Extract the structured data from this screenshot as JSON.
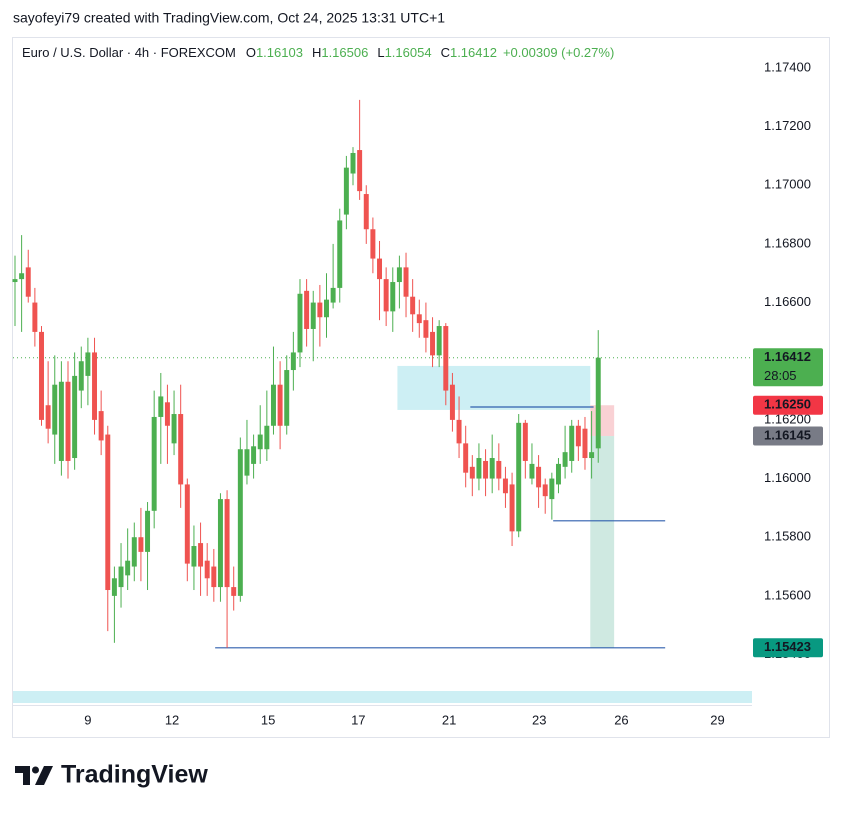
{
  "attribution": "sayofeyi79 created with TradingView.com, Oct 24, 2025 13:31 UTC+1",
  "brand": "TradingView",
  "chart_data": {
    "type": "candlestick",
    "header": {
      "symbol": "Euro / U.S. Dollar · 4h · FOREXCOM",
      "ohlc": [
        {
          "key": "O",
          "value": 1.16103
        },
        {
          "key": "H",
          "value": 1.16506
        },
        {
          "key": "L",
          "value": 1.16054
        },
        {
          "key": "C",
          "value": 1.16412
        }
      ],
      "change": "+0.00309 (+0.27%)"
    },
    "up_color": "#4caf50",
    "down_color": "#ef5350",
    "x": [
      0,
      1,
      2,
      3,
      4,
      5,
      6,
      7,
      8,
      9,
      10,
      11,
      12,
      13,
      14,
      15,
      16,
      17,
      18,
      19,
      20,
      21,
      22,
      23,
      24,
      25,
      26,
      27,
      28,
      29,
      30,
      31,
      32,
      33,
      34,
      35,
      36,
      37,
      38,
      39,
      40,
      41,
      42,
      43,
      44,
      45,
      46,
      47,
      48,
      49,
      50,
      51,
      52,
      53,
      54,
      55,
      56,
      57,
      58,
      59,
      60,
      61,
      62,
      63,
      64,
      65,
      66,
      67,
      68,
      69,
      70,
      71,
      72,
      73,
      74,
      75,
      76,
      77,
      78,
      79,
      80,
      81,
      82,
      83,
      84,
      85,
      86,
      87,
      88
    ],
    "open": [
      1.1667,
      1.1668,
      1.1672,
      1.166,
      1.165,
      1.1625,
      1.1615,
      1.1606,
      1.1633,
      1.1607,
      1.163,
      1.1635,
      1.1643,
      1.1623,
      1.1615,
      1.156,
      1.1563,
      1.1567,
      1.157,
      1.158,
      1.1575,
      1.1589,
      1.1621,
      1.1626,
      1.1612,
      1.1622,
      1.1598,
      1.157,
      1.1578,
      1.1572,
      1.157,
      1.1563,
      1.1593,
      1.1563,
      1.156,
      1.1601,
      1.1605,
      1.161,
      1.161,
      1.1618,
      1.1632,
      1.1618,
      1.1637,
      1.1643,
      1.1664,
      1.1651,
      1.166,
      1.1655,
      1.166,
      1.1665,
      1.169,
      1.1704,
      1.1712,
      1.1697,
      1.1685,
      1.1675,
      1.1668,
      1.1657,
      1.1667,
      1.1672,
      1.1662,
      1.1656,
      1.1654,
      1.165,
      1.1642,
      1.1652,
      1.1632,
      1.162,
      1.1612,
      1.1604,
      1.16,
      1.1606,
      1.16,
      1.1606,
      1.16,
      1.1598,
      1.1582,
      1.1619,
      1.16,
      1.1604,
      1.1598,
      1.1593,
      1.1598,
      1.1604,
      1.1606,
      1.1618,
      1.1617,
      1.1607,
      1.16103
    ],
    "high": [
      1.1676,
      1.1683,
      1.1678,
      1.1665,
      1.1652,
      1.164,
      1.1642,
      1.164,
      1.164,
      1.1643,
      1.1645,
      1.1648,
      1.1648,
      1.163,
      1.1618,
      1.157,
      1.1578,
      1.1583,
      1.1585,
      1.159,
      1.1592,
      1.163,
      1.1636,
      1.1632,
      1.163,
      1.1632,
      1.16,
      1.1584,
      1.1585,
      1.1578,
      1.1576,
      1.1595,
      1.1596,
      1.157,
      1.1614,
      1.162,
      1.1615,
      1.1625,
      1.163,
      1.1645,
      1.164,
      1.1642,
      1.165,
      1.1668,
      1.1668,
      1.1664,
      1.1666,
      1.167,
      1.168,
      1.1692,
      1.171,
      1.1713,
      1.17291,
      1.17,
      1.1689,
      1.1681,
      1.1672,
      1.1672,
      1.1676,
      1.1677,
      1.1668,
      1.1661,
      1.166,
      1.1655,
      1.1654,
      1.1653,
      1.1636,
      1.1628,
      1.1618,
      1.1608,
      1.1612,
      1.161,
      1.1615,
      1.1612,
      1.1604,
      1.1602,
      1.1622,
      1.162,
      1.1612,
      1.1608,
      1.16,
      1.1602,
      1.1607,
      1.1618,
      1.162,
      1.162,
      1.1621,
      1.1623,
      1.16506
    ],
    "low": [
      1.1652,
      1.165,
      1.166,
      1.1645,
      1.1618,
      1.1612,
      1.1605,
      1.1601,
      1.16,
      1.1603,
      1.1624,
      1.1625,
      1.1615,
      1.1608,
      1.1548,
      1.1544,
      1.1556,
      1.1562,
      1.1565,
      1.1565,
      1.1562,
      1.1583,
      1.1605,
      1.1605,
      1.1608,
      1.159,
      1.1565,
      1.1562,
      1.156,
      1.156,
      1.1558,
      1.1558,
      1.15423,
      1.1555,
      1.1558,
      1.1598,
      1.16,
      1.1605,
      1.1606,
      1.1615,
      1.161,
      1.1615,
      1.163,
      1.1638,
      1.1645,
      1.164,
      1.1645,
      1.1648,
      1.1658,
      1.166,
      1.1685,
      1.17,
      1.1695,
      1.168,
      1.167,
      1.1654,
      1.1652,
      1.165,
      1.1658,
      1.1655,
      1.165,
      1.1648,
      1.1643,
      1.1638,
      1.1638,
      1.1625,
      1.1616,
      1.1607,
      1.1597,
      1.1594,
      1.1596,
      1.1594,
      1.1595,
      1.1596,
      1.159,
      1.1577,
      1.158,
      1.16,
      1.1598,
      1.159,
      1.1588,
      1.1586,
      1.1595,
      1.16,
      1.1602,
      1.1606,
      1.1603,
      1.16,
      1.16054
    ],
    "close": [
      1.1668,
      1.167,
      1.1662,
      1.165,
      1.162,
      1.1617,
      1.1632,
      1.1633,
      1.1606,
      1.1635,
      1.164,
      1.1643,
      1.162,
      1.1613,
      1.1562,
      1.1566,
      1.157,
      1.1572,
      1.158,
      1.1575,
      1.1589,
      1.1621,
      1.1628,
      1.1618,
      1.1622,
      1.1598,
      1.1571,
      1.1577,
      1.157,
      1.1566,
      1.1563,
      1.1593,
      1.1563,
      1.156,
      1.161,
      1.161,
      1.1611,
      1.1615,
      1.1618,
      1.1632,
      1.1618,
      1.1637,
      1.1643,
      1.1663,
      1.1651,
      1.166,
      1.1655,
      1.1661,
      1.1665,
      1.1688,
      1.1706,
      1.1711,
      1.1698,
      1.1685,
      1.1675,
      1.1668,
      1.1657,
      1.1667,
      1.1672,
      1.1662,
      1.1656,
      1.1653,
      1.1648,
      1.1642,
      1.1652,
      1.163,
      1.162,
      1.1612,
      1.1602,
      1.16,
      1.1607,
      1.16,
      1.1607,
      1.16,
      1.1595,
      1.1582,
      1.1619,
      1.1606,
      1.1605,
      1.1597,
      1.1594,
      1.16,
      1.1605,
      1.1609,
      1.1618,
      1.1611,
      1.1607,
      1.1609,
      1.16412
    ],
    "xlim": [
      -0.3,
      111.2
    ],
    "ylim": [
      1.15228,
      1.17502
    ],
    "xticks": [
      {
        "value": 11,
        "label": "9"
      },
      {
        "value": 23.7,
        "label": "12"
      },
      {
        "value": 38.2,
        "label": "15"
      },
      {
        "value": 51.8,
        "label": "17"
      },
      {
        "value": 65.5,
        "label": "21"
      },
      {
        "value": 79.1,
        "label": "23"
      },
      {
        "value": 91.5,
        "label": "26"
      },
      {
        "value": 106,
        "label": "29"
      }
    ],
    "yticks": [
      {
        "value": 1.174,
        "label": "1.17400"
      },
      {
        "value": 1.172,
        "label": "1.17200"
      },
      {
        "value": 1.17,
        "label": "1.17000"
      },
      {
        "value": 1.168,
        "label": "1.16800"
      },
      {
        "value": 1.166,
        "label": "1.16600"
      },
      {
        "value": 1.164,
        "label": "1.16400"
      },
      {
        "value": 1.162,
        "label": "1.16200"
      },
      {
        "value": 1.16,
        "label": "1.16000"
      },
      {
        "value": 1.158,
        "label": "1.15800"
      },
      {
        "value": 1.156,
        "label": "1.15600"
      },
      {
        "value": 1.154,
        "label": "1.15400"
      }
    ],
    "grid": false,
    "rectangles": [
      {
        "x": [
          57.7,
          86.8
        ],
        "y": [
          1.16234,
          1.16384
        ],
        "color": "#cdeff4"
      },
      {
        "x": [
          86.8,
          90.4
        ],
        "y": [
          1.16145,
          1.1625
        ],
        "color": "#f9d1d4"
      },
      {
        "x": [
          86.8,
          90.4
        ],
        "y": [
          1.15423,
          1.16145
        ],
        "color": "#cfe9e1"
      }
    ],
    "lines": [
      {
        "x": [
          30.2,
          98.1
        ],
        "y": 1.15423,
        "color": "#2f5fae"
      },
      {
        "x": [
          81.2,
          98.1
        ],
        "y": 1.15856,
        "color": "#2f5fae"
      },
      {
        "x": [
          68.7,
          87.3
        ],
        "y": 1.16244,
        "color": "#2f5fae"
      }
    ],
    "price_labels": [
      {
        "value": 1.16412,
        "label": "1.16412",
        "color": "#4caf50",
        "countdown": "28:05",
        "dotted": true
      },
      {
        "value": 1.1625,
        "label": "1.16250",
        "color": "#f23645"
      },
      {
        "value": 1.16145,
        "label": "1.16145",
        "color": "#787b86"
      },
      {
        "value": 1.15423,
        "label": "1.15423",
        "color": "#089981"
      }
    ]
  }
}
